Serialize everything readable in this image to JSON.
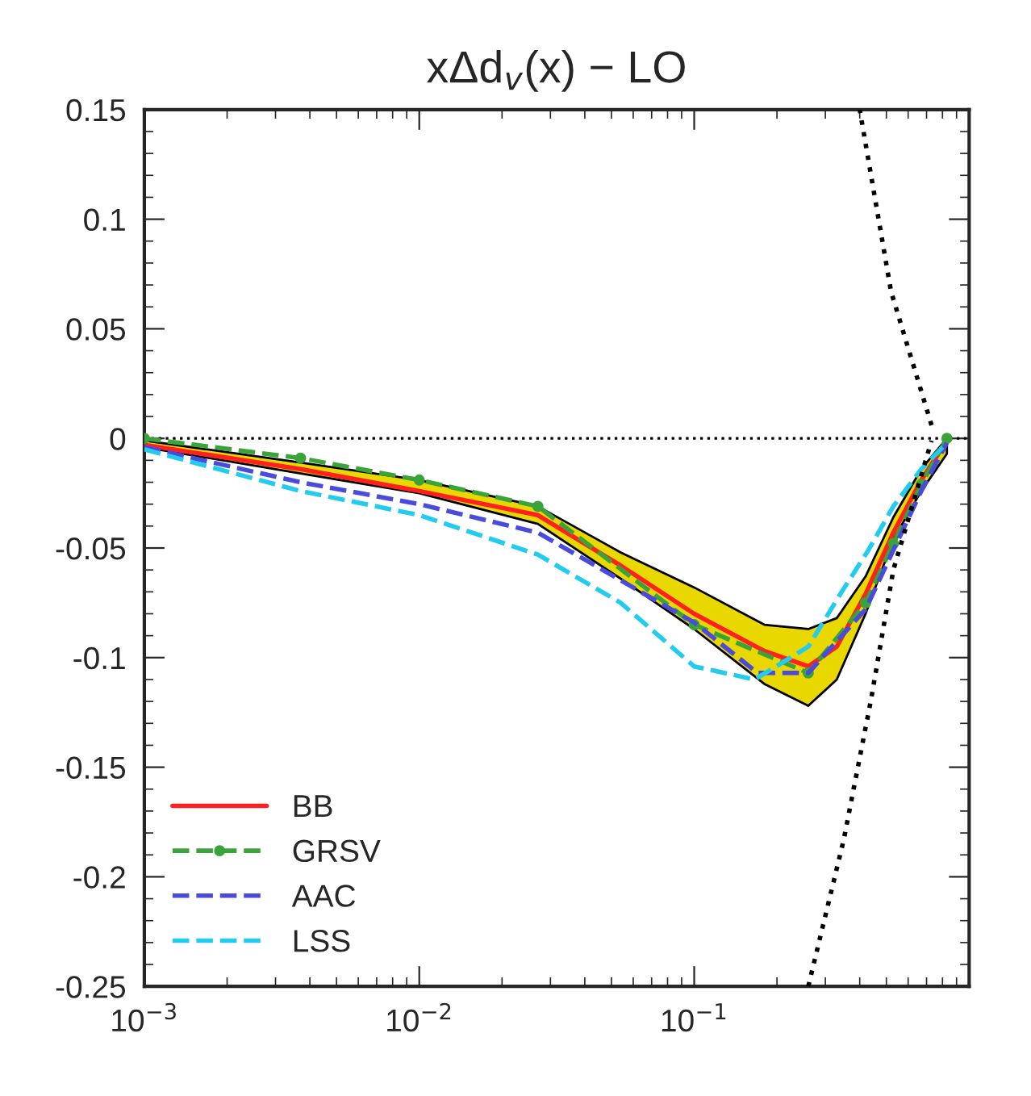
{
  "chart_data": {
    "type": "line",
    "title": "xΔd$_{v}$(x) − LO",
    "series": [
      {
        "name": "BB",
        "color": "#ff2020",
        "line_style": "solid",
        "marker": "none",
        "x": [
          0.001,
          0.0037,
          0.01,
          0.027,
          0.054,
          0.1,
          0.18,
          0.26,
          0.33,
          0.42,
          0.53,
          0.67,
          0.83
        ],
        "values": [
          -0.003,
          -0.014,
          -0.024,
          -0.035,
          -0.058,
          -0.08,
          -0.097,
          -0.104,
          -0.095,
          -0.071,
          -0.043,
          -0.019,
          -0.001
        ],
        "lower": [
          -0.004,
          -0.016,
          -0.025,
          -0.039,
          -0.064,
          -0.087,
          -0.112,
          -0.122,
          -0.11,
          -0.08,
          -0.046,
          -0.024,
          -0.007
        ],
        "upper": [
          -0.001,
          -0.011,
          -0.019,
          -0.031,
          -0.052,
          -0.068,
          -0.085,
          -0.087,
          -0.082,
          -0.063,
          -0.036,
          -0.014,
          0.0
        ]
      },
      {
        "name": "GRSV",
        "color": "#3aa33a",
        "line_style": "dashed",
        "marker": "circle",
        "x": [
          0.001,
          0.0037,
          0.01,
          0.027,
          0.1,
          0.26,
          0.42,
          0.53,
          0.67,
          0.83
        ],
        "values": [
          0.0,
          -0.009,
          -0.019,
          -0.031,
          -0.085,
          -0.107,
          -0.075,
          -0.048,
          -0.021,
          0.0
        ]
      },
      {
        "name": "AAC",
        "color": "#4a4adc",
        "line_style": "dashed",
        "marker": "none",
        "x": [
          0.001,
          0.0037,
          0.01,
          0.027,
          0.1,
          0.17,
          0.26,
          0.42,
          0.53,
          0.67,
          0.83
        ],
        "values": [
          -0.004,
          -0.02,
          -0.03,
          -0.043,
          -0.084,
          -0.107,
          -0.107,
          -0.078,
          -0.051,
          -0.024,
          -0.002
        ]
      },
      {
        "name": "LSS",
        "color": "#22ccee",
        "line_style": "dashed",
        "marker": "none",
        "x": [
          0.001,
          0.0037,
          0.01,
          0.027,
          0.054,
          0.1,
          0.166,
          0.26,
          0.34,
          0.43,
          0.53,
          0.67,
          0.83
        ],
        "values": [
          -0.005,
          -0.024,
          -0.035,
          -0.053,
          -0.075,
          -0.104,
          -0.11,
          -0.095,
          -0.071,
          -0.051,
          -0.031,
          -0.014,
          -0.002
        ]
      },
      {
        "color": "#000000",
        "line_style": "dotted",
        "marker": "none",
        "x": [
          0.26,
          0.35,
          0.44,
          0.53,
          0.73
        ],
        "values": [
          -0.25,
          -0.183,
          -0.119,
          -0.06,
          -0.001
        ]
      },
      {
        "color": "#000000",
        "line_style": "dotted",
        "marker": "none",
        "x": [
          0.73,
          0.52,
          0.4
        ],
        "values": [
          0.006,
          0.067,
          0.15
        ]
      }
    ],
    "ref_lines": [
      {
        "axis": "y",
        "value": 0,
        "color": "#000000",
        "line_style": "dotted"
      }
    ],
    "log": "x",
    "xlim": [
      0.001,
      1
    ],
    "xticks": [
      {
        "value": 0.001,
        "label": "10$^{−3}$"
      },
      {
        "value": 0.01,
        "label": "10$^{−2}$"
      },
      {
        "value": 0.1,
        "label": "10$^{−1}$"
      }
    ],
    "ylim": [
      -0.25,
      0.15
    ],
    "yticks": [
      -0.25,
      -0.2,
      -0.15,
      -0.1,
      -0.05,
      0,
      0.05,
      0.1,
      0.15
    ],
    "grid": false,
    "legend": "bottom left"
  }
}
